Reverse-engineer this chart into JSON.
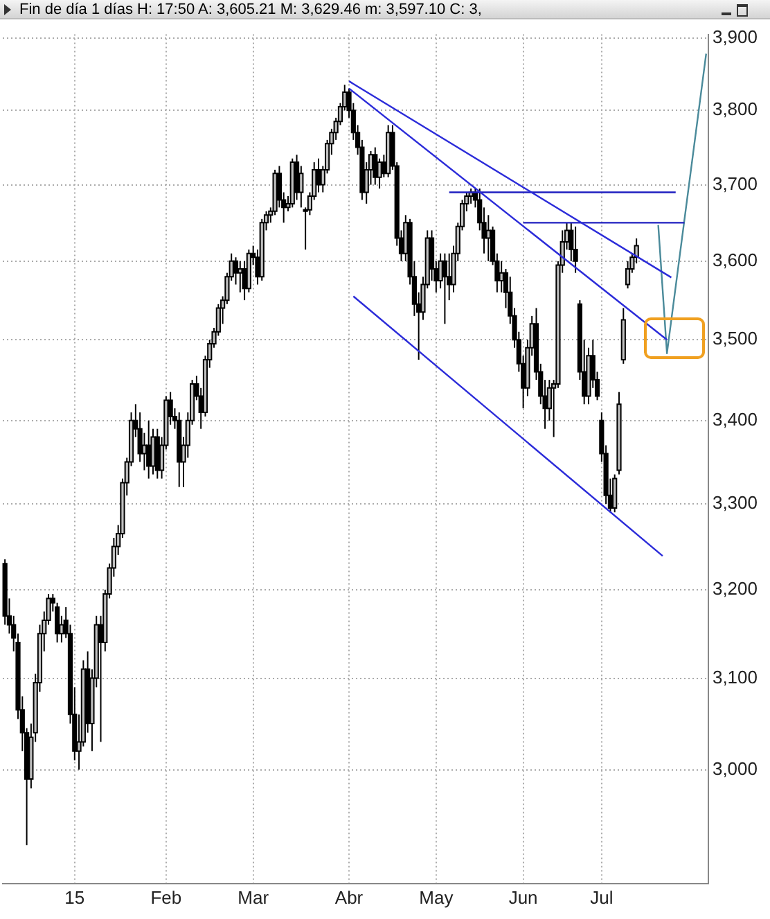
{
  "chart_data": {
    "type": "candlestick",
    "title": "Fin de día 1 días  H: 17:50  A: 3,605.21  M: 3,629.46  m: 3,597.10  C: 3,",
    "categories": [
      null,
      null,
      null,
      null,
      null,
      null,
      null,
      null,
      null,
      null,
      null,
      null,
      null,
      null,
      null,
      null,
      "15",
      null,
      null,
      null,
      null,
      null,
      null,
      null,
      null,
      null,
      null,
      null,
      null,
      null,
      null,
      null,
      null,
      null,
      null,
      null,
      null,
      "Feb",
      null,
      null,
      null,
      null,
      null,
      null,
      null,
      null,
      null,
      null,
      null,
      null,
      null,
      null,
      null,
      null,
      null,
      null,
      null,
      "Mar",
      null,
      null,
      null,
      null,
      null,
      null,
      null,
      null,
      null,
      null,
      null,
      null,
      null,
      null,
      null,
      null,
      null,
      null,
      null,
      null,
      null,
      "Abr",
      null,
      null,
      null,
      null,
      null,
      null,
      null,
      null,
      null,
      null,
      null,
      null,
      null,
      null,
      null,
      null,
      null,
      null,
      null,
      "May",
      null,
      null,
      null,
      null,
      null,
      null,
      null,
      null,
      null,
      null,
      null,
      null,
      null,
      null,
      null,
      null,
      null,
      null,
      null,
      "Jun",
      null,
      null,
      null,
      null,
      null,
      null,
      null,
      null,
      null,
      null,
      null,
      null,
      null,
      null,
      null,
      null,
      null,
      "Jul",
      null,
      null,
      null,
      null,
      null,
      null,
      null,
      null,
      null,
      null,
      null,
      null,
      null,
      null,
      null,
      null,
      null,
      null,
      null,
      null,
      null,
      null,
      null,
      null
    ],
    "series": [
      {
        "ohlc": [
          [
            3230,
            3235,
            3160,
            3170
          ],
          [
            3170,
            3190,
            3150,
            3160
          ],
          [
            3160,
            3170,
            3130,
            3145
          ],
          [
            3140,
            3150,
            3055,
            3065
          ],
          [
            3065,
            3080,
            3020,
            3040
          ],
          [
            3040,
            3045,
            2920,
            2990
          ],
          [
            2990,
            3050,
            2980,
            3035
          ],
          [
            3040,
            3105,
            3030,
            3095
          ],
          [
            3095,
            3160,
            3085,
            3150
          ],
          [
            3150,
            3175,
            3130,
            3165
          ],
          [
            3165,
            3195,
            3160,
            3190
          ],
          [
            3190,
            3195,
            3175,
            3185
          ],
          [
            3180,
            3185,
            3140,
            3150
          ],
          [
            3150,
            3170,
            3140,
            3160
          ],
          [
            3165,
            3180,
            3145,
            3150
          ],
          [
            3150,
            3160,
            3050,
            3060
          ],
          [
            3060,
            3090,
            3010,
            3020
          ],
          [
            3020,
            3060,
            3000,
            3030
          ],
          [
            3030,
            3120,
            3025,
            3110
          ],
          [
            3110,
            3130,
            3040,
            3050
          ],
          [
            3050,
            3110,
            3020,
            3100
          ],
          [
            3100,
            3170,
            3090,
            3160
          ],
          [
            3160,
            3170,
            3030,
            3140
          ],
          [
            3140,
            3200,
            3130,
            3195
          ],
          [
            3195,
            3230,
            3190,
            3225
          ],
          [
            3225,
            3260,
            3215,
            3250
          ],
          [
            3250,
            3275,
            3240,
            3265
          ],
          [
            3265,
            3330,
            3260,
            3325
          ],
          [
            3325,
            3355,
            3310,
            3350
          ],
          [
            3350,
            3410,
            3345,
            3400
          ],
          [
            3400,
            3420,
            3380,
            3390
          ],
          [
            3390,
            3410,
            3350,
            3360
          ],
          [
            3360,
            3385,
            3340,
            3370
          ],
          [
            3370,
            3400,
            3330,
            3345
          ],
          [
            3345,
            3390,
            3335,
            3380
          ],
          [
            3380,
            3390,
            3330,
            3340
          ],
          [
            3340,
            3380,
            3330,
            3370
          ],
          [
            3370,
            3430,
            3365,
            3425
          ],
          [
            3425,
            3435,
            3395,
            3405
          ],
          [
            3405,
            3415,
            3390,
            3400
          ],
          [
            3400,
            3410,
            3320,
            3350
          ],
          [
            3350,
            3380,
            3320,
            3370
          ],
          [
            3370,
            3410,
            3355,
            3400
          ],
          [
            3400,
            3450,
            3395,
            3445
          ],
          [
            3445,
            3455,
            3425,
            3430
          ],
          [
            3430,
            3440,
            3390,
            3410
          ],
          [
            3410,
            3480,
            3405,
            3475
          ],
          [
            3475,
            3500,
            3465,
            3495
          ],
          [
            3495,
            3515,
            3490,
            3510
          ],
          [
            3510,
            3545,
            3505,
            3540
          ],
          [
            3540,
            3555,
            3520,
            3550
          ],
          [
            3550,
            3585,
            3545,
            3580
          ],
          [
            3580,
            3610,
            3575,
            3600
          ],
          [
            3600,
            3605,
            3570,
            3585
          ],
          [
            3585,
            3600,
            3560,
            3590
          ],
          [
            3590,
            3600,
            3550,
            3565
          ],
          [
            3565,
            3615,
            3560,
            3610
          ],
          [
            3610,
            3620,
            3595,
            3605
          ],
          [
            3605,
            3615,
            3570,
            3580
          ],
          [
            3580,
            3655,
            3575,
            3650
          ],
          [
            3650,
            3665,
            3640,
            3660
          ],
          [
            3660,
            3670,
            3650,
            3665
          ],
          [
            3665,
            3720,
            3660,
            3715
          ],
          [
            3715,
            3725,
            3670,
            3680
          ],
          [
            3680,
            3690,
            3650,
            3670
          ],
          [
            3670,
            3685,
            3665,
            3675
          ],
          [
            3675,
            3735,
            3670,
            3730
          ],
          [
            3730,
            3740,
            3680,
            3690
          ],
          [
            3690,
            3725,
            3670,
            3715
          ],
          [
            3665,
            3670,
            3615,
            3667
          ],
          [
            3667,
            3690,
            3660,
            3685
          ],
          [
            3685,
            3730,
            3680,
            3720
          ],
          [
            3720,
            3735,
            3690,
            3700
          ],
          [
            3700,
            3725,
            3690,
            3720
          ],
          [
            3720,
            3760,
            3715,
            3755
          ],
          [
            3755,
            3775,
            3740,
            3770
          ],
          [
            3770,
            3790,
            3760,
            3785
          ],
          [
            3785,
            3810,
            3780,
            3805
          ],
          [
            3805,
            3835,
            3800,
            3825
          ],
          [
            3825,
            3830,
            3790,
            3800
          ],
          [
            3800,
            3810,
            3760,
            3770
          ],
          [
            3770,
            3780,
            3740,
            3750
          ],
          [
            3750,
            3760,
            3680,
            3690
          ],
          [
            3690,
            3730,
            3675,
            3720
          ],
          [
            3720,
            3745,
            3700,
            3740
          ],
          [
            3740,
            3750,
            3700,
            3710
          ],
          [
            3710,
            3735,
            3695,
            3730
          ],
          [
            3730,
            3740,
            3710,
            3715
          ],
          [
            3715,
            3780,
            3710,
            3770
          ],
          [
            3770,
            3780,
            3720,
            3725
          ],
          [
            3725,
            3730,
            3620,
            3630
          ],
          [
            3630,
            3640,
            3600,
            3610
          ],
          [
            3610,
            3660,
            3600,
            3650
          ],
          [
            3650,
            3655,
            3570,
            3580
          ],
          [
            3580,
            3600,
            3530,
            3545
          ],
          [
            3545,
            3560,
            3475,
            3535
          ],
          [
            3535,
            3580,
            3525,
            3570
          ],
          [
            3570,
            3640,
            3565,
            3630
          ],
          [
            3630,
            3640,
            3575,
            3590
          ],
          [
            3590,
            3600,
            3560,
            3575
          ],
          [
            3575,
            3610,
            3565,
            3600
          ],
          [
            3600,
            3610,
            3520,
            3580
          ],
          [
            3580,
            3610,
            3550,
            3570
          ],
          [
            3570,
            3620,
            3560,
            3610
          ],
          [
            3610,
            3650,
            3600,
            3645
          ],
          [
            3645,
            3680,
            3640,
            3675
          ],
          [
            3675,
            3690,
            3665,
            3685
          ],
          [
            3685,
            3695,
            3675,
            3690
          ],
          [
            3690,
            3695,
            3670,
            3680
          ],
          [
            3680,
            3695,
            3640,
            3650
          ],
          [
            3650,
            3670,
            3610,
            3630
          ],
          [
            3630,
            3660,
            3600,
            3640
          ],
          [
            3640,
            3645,
            3595,
            3600
          ],
          [
            3600,
            3610,
            3560,
            3575
          ],
          [
            3575,
            3600,
            3560,
            3585
          ],
          [
            3585,
            3590,
            3540,
            3560
          ],
          [
            3560,
            3580,
            3520,
            3530
          ],
          [
            3530,
            3540,
            3490,
            3500
          ],
          [
            3500,
            3510,
            3460,
            3470
          ],
          [
            3470,
            3480,
            3415,
            3440
          ],
          [
            3440,
            3500,
            3430,
            3490
          ],
          [
            3490,
            3530,
            3480,
            3520
          ],
          [
            3520,
            3540,
            3450,
            3460
          ],
          [
            3460,
            3470,
            3420,
            3430
          ],
          [
            3430,
            3450,
            3390,
            3415
          ],
          [
            3415,
            3450,
            3400,
            3440
          ],
          [
            3440,
            3450,
            3380,
            3445
          ],
          [
            3445,
            3600,
            3440,
            3595
          ],
          [
            3595,
            3640,
            3585,
            3625
          ],
          [
            3625,
            3650,
            3615,
            3640
          ],
          [
            3640,
            3650,
            3600,
            3615
          ],
          [
            3615,
            3645,
            3585,
            3600
          ],
          [
            3545,
            3550,
            3450,
            3460
          ],
          [
            3460,
            3500,
            3420,
            3430
          ],
          [
            3430,
            3490,
            3420,
            3480
          ],
          [
            3480,
            3500,
            3440,
            3450
          ],
          [
            3450,
            3460,
            3425,
            3430
          ],
          [
            3400,
            3410,
            3350,
            3360
          ],
          [
            3360,
            3370,
            3300,
            3310
          ],
          [
            3310,
            3330,
            3290,
            3295
          ],
          [
            3295,
            3335,
            3290,
            3330
          ],
          [
            3340,
            3435,
            3335,
            3420
          ],
          [
            3475,
            3540,
            3470,
            3525
          ],
          [
            3570,
            3600,
            3565,
            3590
          ],
          [
            3590,
            3610,
            3585,
            3605
          ],
          [
            3605.21,
            3629.46,
            3597.1,
            3620
          ],
          null,
          null,
          null,
          null,
          null,
          null,
          null,
          null,
          null,
          null,
          null,
          null,
          null,
          null,
          null,
          null
        ],
        "colors": [
          "#000000",
          "#000000",
          "#000000",
          "#000000",
          "#000000",
          "#000000",
          "#c0c0c0",
          "#c0c0c0",
          "#c0c0c0",
          "#c0c0c0",
          "#c0c0c0",
          "#000000",
          "#000000",
          "#c0c0c0",
          "#000000",
          "#000000",
          "#000000",
          "#c0c0c0",
          "#c0c0c0",
          "#000000",
          "#c0c0c0",
          "#c0c0c0",
          "#000000",
          "#c0c0c0",
          "#c0c0c0",
          "#c0c0c0",
          "#c0c0c0",
          "#c0c0c0",
          "#c0c0c0",
          "#c0c0c0",
          "#000000",
          "#000000",
          "#c0c0c0",
          "#000000",
          "#c0c0c0",
          "#000000",
          "#c0c0c0",
          "#c0c0c0",
          "#000000",
          "#000000",
          "#000000",
          "#c0c0c0",
          "#c0c0c0",
          "#c0c0c0",
          "#000000",
          "#000000",
          "#c0c0c0",
          "#c0c0c0",
          "#c0c0c0",
          "#c0c0c0",
          "#c0c0c0",
          "#c0c0c0",
          "#c0c0c0",
          "#000000",
          "#c0c0c0",
          "#000000",
          "#c0c0c0",
          "#000000",
          "#000000",
          "#c0c0c0",
          "#c0c0c0",
          "#c0c0c0",
          "#c0c0c0",
          "#000000",
          "#000000",
          "#c0c0c0",
          "#c0c0c0",
          "#000000",
          "#c0c0c0",
          "#c0c0c0",
          "#c0c0c0",
          "#c0c0c0",
          "#000000",
          "#c0c0c0",
          "#c0c0c0",
          "#c0c0c0",
          "#c0c0c0",
          "#c0c0c0",
          "#c0c0c0",
          "#000000",
          "#000000",
          "#000000",
          "#000000",
          "#c0c0c0",
          "#c0c0c0",
          "#000000",
          "#c0c0c0",
          "#000000",
          "#c0c0c0",
          "#000000",
          "#000000",
          "#000000",
          "#c0c0c0",
          "#000000",
          "#000000",
          "#000000",
          "#c0c0c0",
          "#c0c0c0",
          "#000000",
          "#000000",
          "#c0c0c0",
          "#000000",
          "#000000",
          "#c0c0c0",
          "#c0c0c0",
          "#c0c0c0",
          "#c0c0c0",
          "#c0c0c0",
          "#000000",
          "#000000",
          "#000000",
          "#c0c0c0",
          "#000000",
          "#000000",
          "#c0c0c0",
          "#000000",
          "#000000",
          "#000000",
          "#000000",
          "#000000",
          "#c0c0c0",
          "#c0c0c0",
          "#000000",
          "#000000",
          "#000000",
          "#c0c0c0",
          "#c0c0c0",
          "#c0c0c0",
          "#c0c0c0",
          "#c0c0c0",
          "#000000",
          "#000000",
          "#000000",
          "#000000",
          "#c0c0c0",
          "#000000",
          "#000000",
          "#000000",
          "#000000",
          "#000000",
          "#c0c0c0",
          "#c0c0c0",
          "#c0c0c0",
          "#c0c0c0",
          "#c0c0c0",
          "#c0c0c0",
          null,
          null,
          null,
          null,
          null,
          null,
          null,
          null,
          null,
          null,
          null,
          null,
          null,
          null,
          null,
          null
        ]
      },
      {
        "type": "line",
        "color": "#2b2bd9",
        "values": [
          null,
          null,
          null,
          null,
          null,
          null,
          null,
          null,
          null,
          null,
          null,
          null,
          null,
          null,
          null,
          null,
          null,
          null,
          null,
          null,
          null,
          null,
          null,
          null,
          null,
          null,
          null,
          null,
          null,
          null,
          null,
          null,
          null,
          null,
          null,
          null,
          null,
          null,
          null,
          null,
          null,
          null,
          null,
          null,
          null,
          null,
          null,
          null,
          null,
          null,
          null,
          null,
          null,
          null,
          null,
          null,
          null,
          null,
          null,
          null,
          null,
          null,
          null,
          null,
          null,
          null,
          null,
          null,
          null,
          null,
          null,
          null,
          null,
          null,
          null,
          null,
          null,
          null,
          null,
          3840,
          null,
          null,
          null,
          null,
          null,
          null,
          null,
          null,
          null,
          null,
          null,
          null,
          null,
          null,
          null,
          null,
          null,
          null,
          null,
          null,
          null,
          null,
          null,
          null,
          null,
          null,
          null,
          null,
          null,
          null,
          null,
          null,
          null,
          null,
          null,
          null,
          null,
          null,
          null,
          null,
          null,
          null,
          null,
          null,
          null,
          null,
          null,
          null,
          null,
          null,
          null,
          null,
          null,
          null,
          null,
          null,
          null,
          null,
          null,
          null,
          null,
          null,
          null,
          null,
          null,
          null,
          null,
          null,
          null,
          null,
          null,
          null,
          null,
          3579,
          null,
          null,
          null,
          null,
          null,
          null,
          null,
          null
        ]
      },
      {
        "type": "line",
        "color": "#2b2bd9",
        "values": [
          null,
          null,
          null,
          null,
          null,
          null,
          null,
          null,
          null,
          null,
          null,
          null,
          null,
          null,
          null,
          null,
          null,
          null,
          null,
          null,
          null,
          null,
          null,
          null,
          null,
          null,
          null,
          null,
          null,
          null,
          null,
          null,
          null,
          null,
          null,
          null,
          null,
          null,
          null,
          null,
          null,
          null,
          null,
          null,
          null,
          null,
          null,
          null,
          null,
          null,
          null,
          null,
          null,
          null,
          null,
          null,
          null,
          null,
          null,
          null,
          null,
          null,
          null,
          null,
          null,
          null,
          null,
          null,
          null,
          null,
          null,
          null,
          null,
          null,
          null,
          null,
          null,
          null,
          null,
          3830,
          null,
          null,
          null,
          null,
          null,
          null,
          null,
          null,
          null,
          null,
          null,
          null,
          null,
          null,
          null,
          null,
          null,
          null,
          null,
          null,
          null,
          null,
          null,
          null,
          null,
          null,
          null,
          null,
          null,
          null,
          null,
          null,
          null,
          null,
          null,
          null,
          null,
          null,
          null,
          null,
          null,
          null,
          null,
          null,
          null,
          null,
          null,
          null,
          null,
          null,
          null,
          null,
          null,
          null,
          null,
          null,
          null,
          null,
          null,
          null,
          null,
          null,
          null,
          null,
          null,
          null,
          null,
          null,
          null,
          null,
          null,
          null,
          3500,
          null,
          null,
          null,
          null,
          null,
          null,
          null,
          null,
          null
        ]
      },
      {
        "type": "line",
        "color": "#2b2bd9",
        "values": [
          null,
          null,
          null,
          null,
          null,
          null,
          null,
          null,
          null,
          null,
          null,
          null,
          null,
          null,
          null,
          null,
          null,
          null,
          null,
          null,
          null,
          null,
          null,
          null,
          null,
          null,
          null,
          null,
          null,
          null,
          null,
          null,
          null,
          null,
          null,
          null,
          null,
          null,
          null,
          null,
          null,
          null,
          null,
          null,
          null,
          null,
          null,
          null,
          null,
          null,
          null,
          null,
          null,
          null,
          null,
          null,
          null,
          null,
          null,
          null,
          null,
          null,
          null,
          null,
          null,
          null,
          null,
          null,
          null,
          null,
          null,
          null,
          null,
          null,
          null,
          null,
          null,
          null,
          null,
          null,
          3555,
          null,
          null,
          null,
          null,
          null,
          null,
          null,
          null,
          null,
          null,
          null,
          null,
          null,
          null,
          null,
          null,
          null,
          null,
          null,
          null,
          null,
          null,
          null,
          null,
          null,
          null,
          null,
          null,
          null,
          null,
          null,
          null,
          null,
          null,
          null,
          null,
          null,
          null,
          null,
          null,
          null,
          null,
          null,
          null,
          null,
          null,
          null,
          null,
          null,
          null,
          null,
          null,
          null,
          null,
          null,
          null,
          null,
          null,
          null,
          null,
          null,
          null,
          null,
          null,
          null,
          null,
          null,
          null,
          null,
          null,
          3239,
          null,
          null,
          null,
          null,
          null,
          null,
          null,
          null,
          null,
          null
        ]
      },
      {
        "type": "line",
        "color": "#1f1fc0",
        "values": [
          null,
          null,
          null,
          null,
          null,
          null,
          null,
          null,
          null,
          null,
          null,
          null,
          null,
          null,
          null,
          null,
          null,
          null,
          null,
          null,
          null,
          null,
          null,
          null,
          null,
          null,
          null,
          null,
          null,
          null,
          null,
          null,
          null,
          null,
          null,
          null,
          null,
          null,
          null,
          null,
          null,
          null,
          null,
          null,
          null,
          null,
          null,
          null,
          null,
          null,
          null,
          null,
          null,
          null,
          null,
          null,
          null,
          null,
          null,
          null,
          null,
          null,
          null,
          null,
          null,
          null,
          null,
          null,
          null,
          null,
          null,
          null,
          null,
          null,
          null,
          null,
          null,
          null,
          null,
          null,
          null,
          null,
          null,
          null,
          null,
          null,
          null,
          null,
          null,
          null,
          null,
          null,
          null,
          null,
          null,
          null,
          null,
          null,
          null,
          null,
          null,
          null,
          3690,
          null,
          null,
          null,
          null,
          null,
          null,
          null,
          null,
          null,
          null,
          null,
          null,
          null,
          null,
          null,
          null,
          null,
          null,
          null,
          null,
          null,
          null,
          null,
          null,
          null,
          null,
          null,
          null,
          null,
          null,
          null,
          null,
          null,
          null,
          null,
          null,
          null,
          null,
          null,
          null,
          null,
          null,
          null,
          null,
          null,
          null,
          null,
          null,
          null,
          null,
          null,
          3690,
          null,
          null,
          null,
          null,
          null,
          null,
          null
        ]
      },
      {
        "type": "line",
        "color": "#1f1fc0",
        "values": [
          null,
          null,
          null,
          null,
          null,
          null,
          null,
          null,
          null,
          null,
          null,
          null,
          null,
          null,
          null,
          null,
          null,
          null,
          null,
          null,
          null,
          null,
          null,
          null,
          null,
          null,
          null,
          null,
          null,
          null,
          null,
          null,
          null,
          null,
          null,
          null,
          null,
          null,
          null,
          null,
          null,
          null,
          null,
          null,
          null,
          null,
          null,
          null,
          null,
          null,
          null,
          null,
          null,
          null,
          null,
          null,
          null,
          null,
          null,
          null,
          null,
          null,
          null,
          null,
          null,
          null,
          null,
          null,
          null,
          null,
          null,
          null,
          null,
          null,
          null,
          null,
          null,
          null,
          null,
          null,
          null,
          null,
          null,
          null,
          null,
          null,
          null,
          null,
          null,
          null,
          null,
          null,
          null,
          null,
          null,
          null,
          null,
          null,
          null,
          null,
          null,
          null,
          null,
          null,
          null,
          null,
          null,
          null,
          null,
          null,
          null,
          null,
          null,
          null,
          null,
          null,
          null,
          null,
          null,
          3650,
          null,
          null,
          null,
          null,
          null,
          null,
          null,
          null,
          null,
          null,
          null,
          null,
          null,
          null,
          null,
          null,
          null,
          null,
          null,
          null,
          null,
          null,
          null,
          null,
          null,
          null,
          null,
          null,
          null,
          null,
          null,
          null,
          null,
          null,
          null,
          null,
          3650,
          null,
          null,
          null,
          null,
          null
        ]
      },
      {
        "type": "line",
        "color": "#4a8a9a",
        "values": [
          null,
          null,
          null,
          null,
          null,
          null,
          null,
          null,
          null,
          null,
          null,
          null,
          null,
          null,
          null,
          null,
          null,
          null,
          null,
          null,
          null,
          null,
          null,
          null,
          null,
          null,
          null,
          null,
          null,
          null,
          null,
          null,
          null,
          null,
          null,
          null,
          null,
          null,
          null,
          null,
          null,
          null,
          null,
          null,
          null,
          null,
          null,
          null,
          null,
          null,
          null,
          null,
          null,
          null,
          null,
          null,
          null,
          null,
          null,
          null,
          null,
          null,
          null,
          null,
          null,
          null,
          null,
          null,
          null,
          null,
          null,
          null,
          null,
          null,
          null,
          null,
          null,
          null,
          null,
          null,
          null,
          null,
          null,
          null,
          null,
          null,
          null,
          null,
          null,
          null,
          null,
          null,
          null,
          null,
          null,
          null,
          null,
          null,
          null,
          null,
          null,
          null,
          null,
          null,
          null,
          null,
          null,
          null,
          null,
          null,
          null,
          null,
          null,
          null,
          null,
          null,
          null,
          null,
          null,
          null,
          null,
          null,
          null,
          null,
          null,
          null,
          null,
          null,
          null,
          null,
          null,
          null,
          null,
          null,
          null,
          null,
          null,
          null,
          null,
          null,
          null,
          null,
          null,
          null,
          null,
          null,
          null,
          null,
          null,
          null,
          3647,
          null,
          3483,
          null,
          null,
          null,
          null,
          null,
          null,
          null,
          null,
          3878
        ]
      }
    ],
    "ylim": [
      2880,
      3905
    ],
    "log": true,
    "grid": true,
    "legend": false,
    "yticks": [
      {
        "value": 3000,
        "label": "3,000"
      },
      {
        "value": 3100,
        "label": "3,100"
      },
      {
        "value": 3200,
        "label": "3,200"
      },
      {
        "value": 3300,
        "label": "3,300"
      },
      {
        "value": 3400,
        "label": "3,400"
      },
      {
        "value": 3500,
        "label": "3,500"
      },
      {
        "value": 3600,
        "label": "3,600"
      },
      {
        "value": 3700,
        "label": "3,700"
      },
      {
        "value": 3800,
        "label": "3,800"
      },
      {
        "value": 3900,
        "label": "3,900"
      }
    ]
  }
}
